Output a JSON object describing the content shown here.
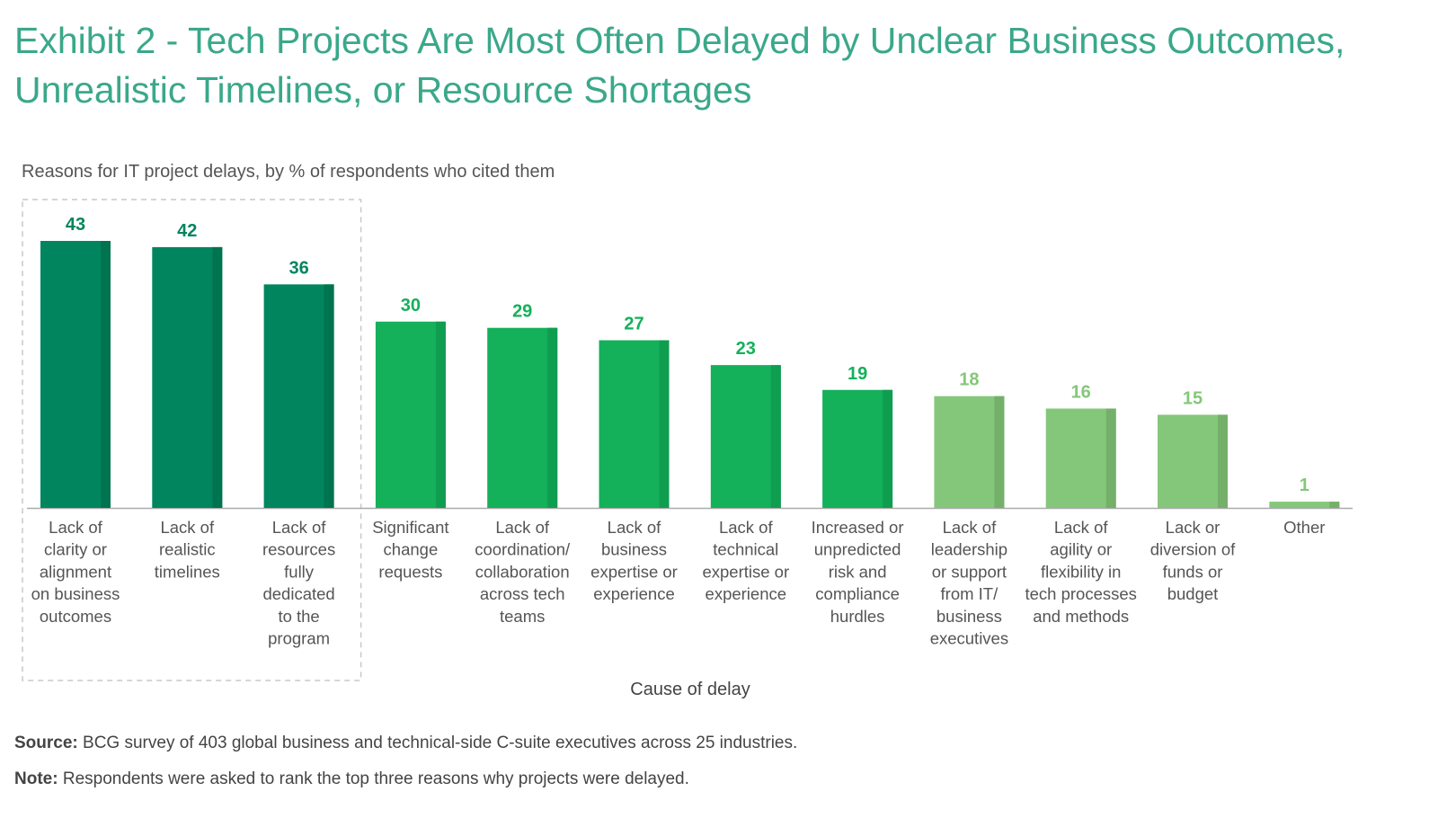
{
  "title": "Exhibit 2 - Tech Projects Are Most Often Delayed by Unclear Business Outcomes, Unrealistic Timelines, or Resource Shortages",
  "subtitle": "Reasons for IT project delays, by % of respondents who cited them",
  "chart_data": {
    "type": "bar",
    "xlabel": "Cause of delay",
    "ylabel": "",
    "ylim": [
      0,
      45
    ],
    "grid": false,
    "categories": [
      "Lack of|clarity or|alignment|on business|outcomes",
      "Lack of|realistic|timelines",
      "Lack of|resources|fully|dedicated|to the|program",
      "Significant|change|requests",
      "Lack of|coordination/|collaboration|across tech|teams",
      "Lack of|business|expertise or|experience",
      "Lack of|technical|expertise or|experience",
      "Increased or|unpredicted|risk and|compliance|hurdles",
      "Lack of|leadership|or support|from IT/|business|executives",
      "Lack of|agility or|flexibility in|tech processes|and methods",
      "Lack or|diversion of|funds or|budget",
      "Other"
    ],
    "values": [
      43,
      42,
      36,
      30,
      29,
      27,
      23,
      19,
      18,
      16,
      15,
      1
    ],
    "tiers": [
      0,
      0,
      0,
      1,
      1,
      1,
      1,
      1,
      2,
      2,
      2,
      2
    ],
    "highlighted_group": [
      0,
      1,
      2
    ],
    "colors": {
      "tier0": "#00855f",
      "tier0_shade": "#00734f",
      "tier1": "#14b05a",
      "tier1_shade": "#0f9d4f",
      "tier2": "#85c77a",
      "tier2_shade": "#74b06a",
      "label_tier0": "#00855f",
      "label_tier1": "#14b05a",
      "label_tier2": "#85c77a"
    }
  },
  "footer": {
    "source_label": "Source:",
    "source_text": "BCG survey of 403 global business and technical-side C-suite executives across 25 industries.",
    "note_label": "Note:",
    "note_text": "Respondents were asked to rank the top three reasons why projects were delayed."
  }
}
